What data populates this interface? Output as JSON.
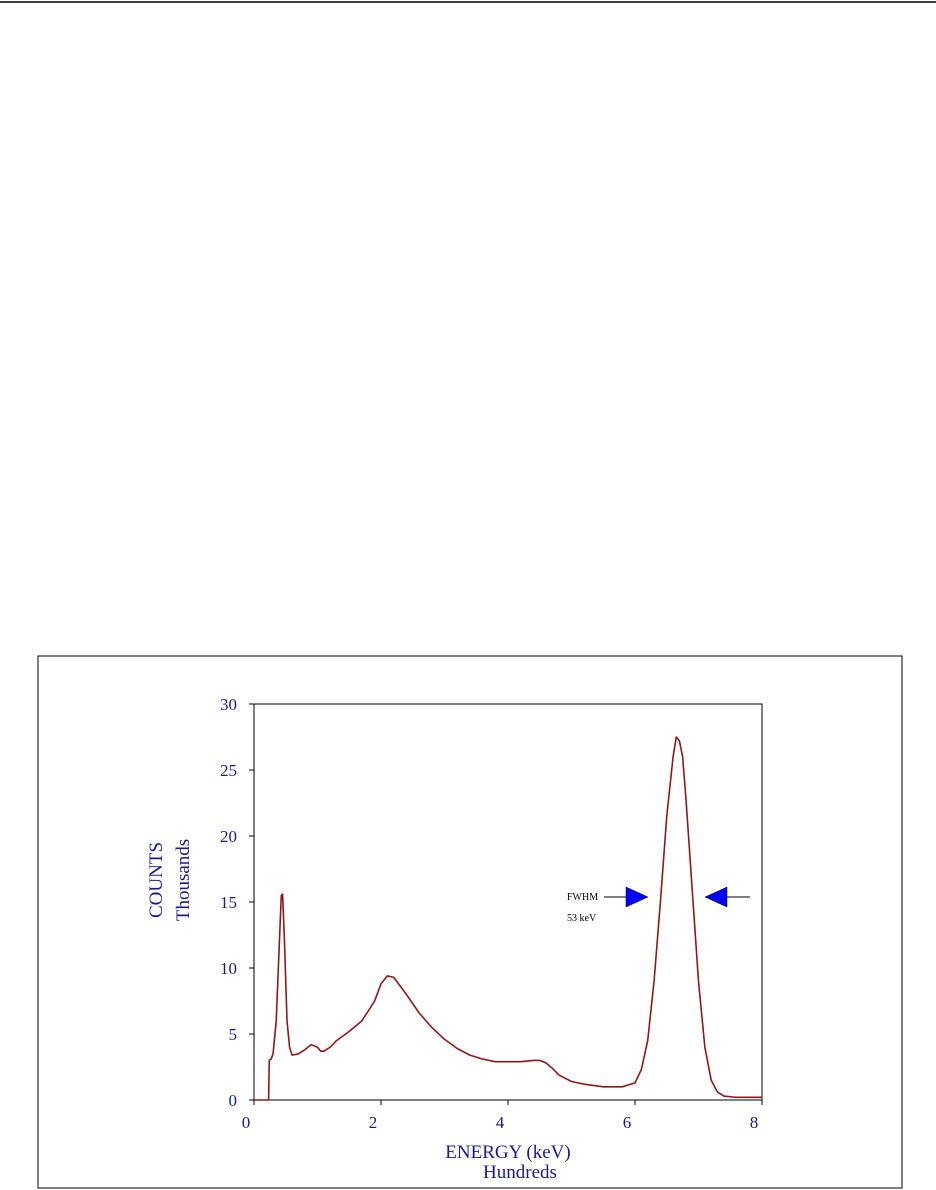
{
  "chart_data": {
    "type": "line",
    "xlabel": [
      "ENERGY (keV)",
      "Hundreds"
    ],
    "ylabel": [
      "COUNTS",
      "Thousands"
    ],
    "annotations": [
      "FWHM",
      "53 keV"
    ],
    "x": [
      0,
      0.2,
      0.23,
      0.24,
      0.27,
      0.3,
      0.35,
      0.4,
      0.43,
      0.45,
      0.48,
      0.52,
      0.56,
      0.6,
      0.7,
      0.8,
      0.9,
      1.0,
      1.05,
      1.1,
      1.2,
      1.3,
      1.5,
      1.7,
      1.9,
      2.0,
      2.1,
      2.2,
      2.4,
      2.6,
      2.8,
      3.0,
      3.2,
      3.4,
      3.6,
      3.8,
      4.0,
      4.2,
      4.4,
      4.5,
      4.6,
      4.7,
      4.8,
      5.0,
      5.2,
      5.5,
      5.8,
      6.0,
      6.1,
      6.2,
      6.3,
      6.4,
      6.5,
      6.6,
      6.65,
      6.7,
      6.75,
      6.8,
      6.9,
      7.0,
      7.1,
      7.2,
      7.3,
      7.4,
      7.6,
      8.0
    ],
    "values": [
      0,
      0,
      0,
      3.0,
      3.1,
      3.5,
      6,
      12,
      15.5,
      15.6,
      12,
      6,
      4,
      3.4,
      3.5,
      3.8,
      4.2,
      4.0,
      3.7,
      3.7,
      4.0,
      4.5,
      5.2,
      6.0,
      7.5,
      8.8,
      9.4,
      9.3,
      8.0,
      6.6,
      5.5,
      4.6,
      3.9,
      3.4,
      3.1,
      2.9,
      2.9,
      2.9,
      3.0,
      3.0,
      2.8,
      2.4,
      1.9,
      1.4,
      1.2,
      1.0,
      1.0,
      1.3,
      2.3,
      4.5,
      9,
      15,
      21.5,
      26,
      27.5,
      27.2,
      26,
      23,
      16,
      9,
      4,
      1.5,
      0.6,
      0.3,
      0.2,
      0.2
    ],
    "color": "#8b1a1a",
    "xlim": [
      0,
      8
    ],
    "xticks": [
      0,
      2,
      4,
      6,
      8
    ],
    "ylim": [
      0,
      30
    ],
    "yticks": [
      0,
      5,
      10,
      15,
      20,
      25,
      30
    ]
  }
}
